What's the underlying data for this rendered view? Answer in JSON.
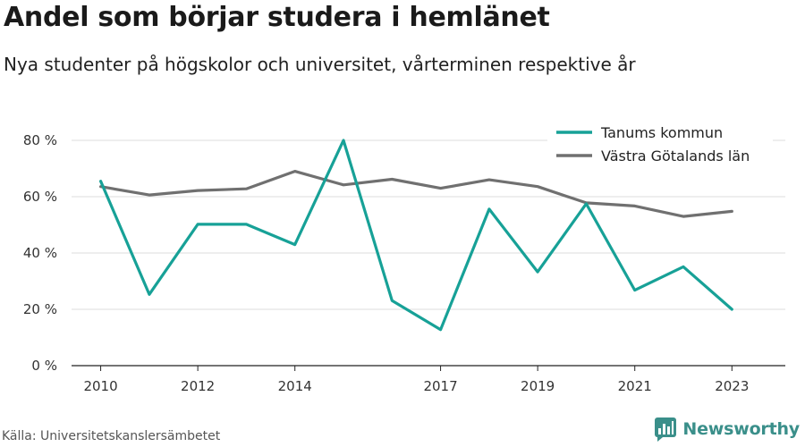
{
  "header": {
    "title": "Andel som börjar studera i hemlänet",
    "subtitle": "Nya studenter på högskolor och universitet, vårterminen respektive år"
  },
  "footer": {
    "source": "Källa: Universitetskanslersämbetet",
    "brand": "Newsworthy",
    "brand_icon": "bar-chart-logo-icon",
    "brand_color": "#3a8f8a"
  },
  "chart_data": {
    "type": "line",
    "title": "Andel som börjar studera i hemlänet",
    "subtitle": "Nya studenter på högskolor och universitet, vårterminen respektive år",
    "x": [
      2010,
      2011,
      2012,
      2013,
      2014,
      2015,
      2016,
      2017,
      2018,
      2019,
      2020,
      2021,
      2022,
      2023
    ],
    "xticks": [
      2010,
      2012,
      2014,
      2017,
      2019,
      2021,
      2023
    ],
    "yticks": [
      0,
      20,
      40,
      60,
      80
    ],
    "ytick_labels": [
      "0 %",
      "20 %",
      "40 %",
      "60 %",
      "80 %"
    ],
    "ylim": [
      0,
      80
    ],
    "xlim": [
      2009.4,
      2024.1
    ],
    "grid": true,
    "legend_position": "top-right",
    "series": [
      {
        "name": "Tanums kommun",
        "color": "#17a197",
        "values": [
          65.5,
          25.3,
          50.2,
          50.2,
          43.0,
          80.0,
          23.1,
          12.8,
          55.6,
          33.3,
          57.5,
          26.8,
          35.1,
          20.0
        ]
      },
      {
        "name": "Västra Götalands län",
        "color": "#707070",
        "values": [
          63.6,
          60.6,
          62.2,
          62.8,
          69.0,
          64.2,
          66.2,
          63.0,
          66.0,
          63.6,
          57.8,
          56.7,
          53.0,
          54.8
        ]
      }
    ]
  }
}
